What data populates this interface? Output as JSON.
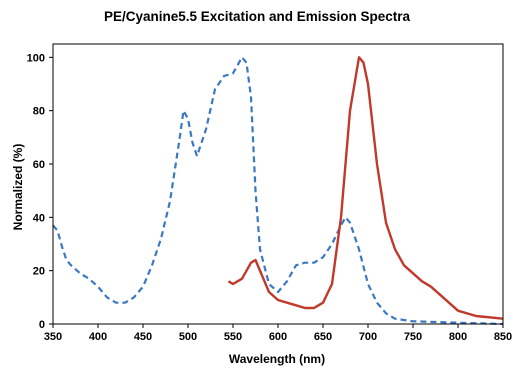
{
  "chart_data": {
    "type": "line",
    "title": "PE/Cyanine5.5 Excitation and Emission Spectra",
    "xlabel": "Wavelength (nm)",
    "ylabel": "Normalized (%)",
    "xlim": [
      350,
      850
    ],
    "ylim": [
      0,
      105
    ],
    "xticks": [
      350,
      400,
      450,
      500,
      550,
      600,
      650,
      700,
      750,
      800,
      850
    ],
    "yticks": [
      0,
      20,
      40,
      60,
      80,
      100
    ],
    "grid": false,
    "legend": "none",
    "series": [
      {
        "style": "dashed",
        "color": "#3a78c2",
        "x": [
          350,
          355,
          360,
          365,
          370,
          380,
          390,
          400,
          410,
          420,
          430,
          440,
          450,
          460,
          470,
          480,
          490,
          495,
          500,
          505,
          510,
          515,
          520,
          530,
          540,
          550,
          555,
          560,
          565,
          570,
          575,
          580,
          590,
          600,
          610,
          620,
          630,
          640,
          650,
          660,
          670,
          675,
          680,
          690,
          700,
          710,
          720,
          730,
          750,
          800,
          850
        ],
        "y": [
          37,
          35,
          29,
          24,
          22,
          19,
          17,
          14,
          10,
          8,
          8,
          10,
          14,
          22,
          32,
          46,
          68,
          80,
          77,
          68,
          63,
          68,
          73,
          88,
          93,
          94,
          97,
          100,
          98,
          85,
          50,
          28,
          15,
          12,
          16,
          22,
          23,
          23,
          25,
          30,
          37,
          40,
          38,
          28,
          15,
          8,
          4,
          2,
          1,
          0.5,
          0
        ]
      },
      {
        "style": "solid",
        "color": "#c0392b",
        "x": [
          545,
          550,
          560,
          565,
          570,
          575,
          580,
          590,
          600,
          610,
          620,
          630,
          640,
          645,
          650,
          660,
          670,
          680,
          690,
          695,
          700,
          710,
          720,
          730,
          740,
          750,
          760,
          770,
          780,
          800,
          820,
          850
        ],
        "y": [
          16,
          15,
          17,
          20,
          23,
          24,
          20,
          12,
          9,
          8,
          7,
          6,
          6,
          7,
          8,
          15,
          40,
          80,
          100,
          98,
          90,
          60,
          38,
          28,
          22,
          19,
          16,
          14,
          11,
          5,
          3,
          2
        ]
      }
    ]
  }
}
